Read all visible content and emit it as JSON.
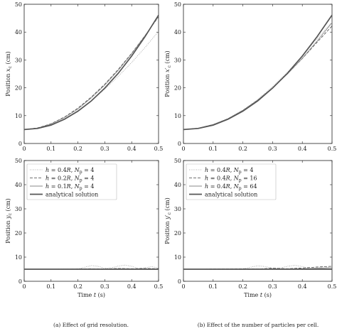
{
  "chart_data": [
    {
      "type": "line",
      "panel": "top-left",
      "ylabel": "Position x_c (cm)",
      "ylabel_main": "Position ",
      "ylabel_sym": "x",
      "ylabel_sub": "c",
      "ylabel_unit": " (cm)",
      "xlabel": "",
      "xlim": [
        0,
        0.5
      ],
      "ylim": [
        0,
        50
      ],
      "xticks": [
        "0",
        "0.1",
        "0.2",
        "0.3",
        "0.4",
        "0.5"
      ],
      "yticks": [
        "0",
        "10",
        "20",
        "30",
        "40",
        "50"
      ],
      "series": [
        {
          "style": "dotted",
          "x": [
            0,
            0.05,
            0.1,
            0.15,
            0.2,
            0.25,
            0.3,
            0.35,
            0.4,
            0.45,
            0.5
          ],
          "y": [
            5,
            5.5,
            6.8,
            8.9,
            11.8,
            15.4,
            19.5,
            24.1,
            29.1,
            34.5,
            40.3
          ]
        },
        {
          "style": "dashed",
          "x": [
            0,
            0.05,
            0.1,
            0.15,
            0.2,
            0.25,
            0.3,
            0.35,
            0.4,
            0.45,
            0.5
          ],
          "y": [
            5,
            5.6,
            7.1,
            9.5,
            12.7,
            16.7,
            21.3,
            26.6,
            32.4,
            38.8,
            45.5
          ]
        },
        {
          "style": "solid-thin",
          "x": [
            0,
            0.05,
            0.1,
            0.15,
            0.2,
            0.25,
            0.3,
            0.35,
            0.4,
            0.45,
            0.5
          ],
          "y": [
            5,
            5.5,
            7.0,
            9.3,
            12.4,
            16.4,
            21.0,
            26.3,
            32.2,
            38.7,
            45.7
          ]
        },
        {
          "style": "solid-thick",
          "x": [
            0,
            0.05,
            0.1,
            0.15,
            0.2,
            0.25,
            0.3,
            0.35,
            0.4,
            0.45,
            0.5
          ],
          "y": [
            5,
            5.4,
            6.6,
            8.7,
            11.6,
            15.3,
            19.9,
            25.2,
            31.4,
            38.4,
            46.1
          ]
        }
      ]
    },
    {
      "type": "line",
      "panel": "top-right",
      "ylabel": "Position x'_c (cm)",
      "ylabel_main": "Position ",
      "ylabel_sym": "x′",
      "ylabel_sub": "c",
      "ylabel_unit": " (cm)",
      "xlabel": "",
      "xlim": [
        0,
        0.5
      ],
      "ylim": [
        0,
        50
      ],
      "xticks": [
        "0",
        "0.1",
        "0.2",
        "0.3",
        "0.4",
        "0.5"
      ],
      "yticks": [
        "0",
        "10",
        "20",
        "30",
        "40",
        "50"
      ],
      "series": [
        {
          "style": "dotted",
          "x": [
            0,
            0.05,
            0.1,
            0.15,
            0.2,
            0.25,
            0.3,
            0.35,
            0.4,
            0.45,
            0.5
          ],
          "y": [
            5,
            5.5,
            6.8,
            9.0,
            12.0,
            15.8,
            20.4,
            25.6,
            31.5,
            37.7,
            43.6
          ]
        },
        {
          "style": "dashed",
          "x": [
            0,
            0.05,
            0.1,
            0.15,
            0.2,
            0.25,
            0.3,
            0.35,
            0.4,
            0.45,
            0.5
          ],
          "y": [
            5,
            5.5,
            6.8,
            8.9,
            11.9,
            15.6,
            20.0,
            25.0,
            30.5,
            36.4,
            42.2
          ]
        },
        {
          "style": "solid-thin",
          "x": [
            0,
            0.05,
            0.1,
            0.15,
            0.2,
            0.25,
            0.3,
            0.35,
            0.4,
            0.45,
            0.5
          ],
          "y": [
            5,
            5.5,
            6.8,
            8.9,
            11.9,
            15.6,
            20.0,
            25.0,
            30.6,
            36.8,
            43.4
          ]
        },
        {
          "style": "solid-thick",
          "x": [
            0,
            0.05,
            0.1,
            0.15,
            0.2,
            0.25,
            0.3,
            0.35,
            0.4,
            0.45,
            0.5
          ],
          "y": [
            5,
            5.4,
            6.6,
            8.7,
            11.6,
            15.3,
            19.9,
            25.2,
            31.4,
            38.4,
            46.1
          ]
        }
      ]
    },
    {
      "type": "line",
      "panel": "bottom-left",
      "ylabel": "Position y_c (cm)",
      "ylabel_main": "Position ",
      "ylabel_sym": "y",
      "ylabel_sub": "c",
      "ylabel_unit": " (cm)",
      "xlabel": "Time t (s)",
      "xlabel_main": "Time ",
      "xlabel_sym": "t",
      "xlabel_unit": " (s)",
      "xlim": [
        0,
        0.5
      ],
      "ylim": [
        0,
        50
      ],
      "xticks": [
        "0",
        "0.1",
        "0.2",
        "0.3",
        "0.4",
        "0.5"
      ],
      "yticks": [
        "0",
        "10",
        "20",
        "30",
        "40",
        "50"
      ],
      "legend": "top-left",
      "legend_entries": [
        {
          "style": "dotted",
          "pre": "h = 0.4R, ",
          "np": "= 4"
        },
        {
          "style": "dashed",
          "pre": "h = 0.2R, ",
          "np": "= 4"
        },
        {
          "style": "solid-thin",
          "pre": "h = 0.1R, ",
          "np": "= 4"
        },
        {
          "style": "solid-thick",
          "pre": "analytical solution",
          "np": ""
        }
      ],
      "series": [
        {
          "style": "dotted",
          "x": [
            0,
            0.05,
            0.1,
            0.15,
            0.2,
            0.225,
            0.25,
            0.275,
            0.3,
            0.325,
            0.35,
            0.375,
            0.4,
            0.425,
            0.45,
            0.475,
            0.5
          ],
          "y": [
            5,
            5,
            5,
            5.1,
            5.1,
            5.8,
            6.5,
            6.2,
            5.4,
            5.6,
            6.3,
            6.7,
            6.2,
            5.3,
            5.6,
            6.1,
            5.4
          ]
        },
        {
          "style": "dashed",
          "x": [
            0,
            0.05,
            0.1,
            0.15,
            0.2,
            0.25,
            0.3,
            0.35,
            0.4,
            0.45,
            0.5
          ],
          "y": [
            5,
            5,
            5,
            5,
            5.1,
            5.2,
            5.1,
            5.3,
            5.2,
            5.3,
            5.2
          ]
        },
        {
          "style": "solid-thin",
          "x": [
            0,
            0.05,
            0.1,
            0.15,
            0.2,
            0.25,
            0.3,
            0.35,
            0.4,
            0.45,
            0.5
          ],
          "y": [
            5,
            5,
            5,
            5,
            5,
            5.1,
            5,
            5.1,
            5.1,
            5,
            5.1
          ]
        },
        {
          "style": "solid-thick",
          "x": [
            0,
            0.5
          ],
          "y": [
            5,
            5
          ]
        }
      ]
    },
    {
      "type": "line",
      "panel": "bottom-right",
      "ylabel": "Position y'_c (cm)",
      "ylabel_main": "Position ",
      "ylabel_sym": "y′",
      "ylabel_sub": "c",
      "ylabel_unit": " (cm)",
      "xlabel": "Time t (s)",
      "xlabel_main": "Time ",
      "xlabel_sym": "t",
      "xlabel_unit": " (s)",
      "xlim": [
        0,
        0.5
      ],
      "ylim": [
        0,
        50
      ],
      "xticks": [
        "0",
        "0.1",
        "0.2",
        "0.3",
        "0.4",
        "0.5"
      ],
      "yticks": [
        "0",
        "10",
        "20",
        "30",
        "40",
        "50"
      ],
      "legend": "top-left",
      "legend_entries": [
        {
          "style": "dotted",
          "pre": "h = 0.4R, ",
          "np": "= 4"
        },
        {
          "style": "dashed",
          "pre": "h = 0.4R, ",
          "np": "= 16"
        },
        {
          "style": "solid-thin",
          "pre": "h = 0.4R, ",
          "np": "= 64"
        },
        {
          "style": "solid-thick",
          "pre": "analytical solution",
          "np": ""
        }
      ],
      "series": [
        {
          "style": "dotted",
          "x": [
            0,
            0.05,
            0.1,
            0.15,
            0.2,
            0.225,
            0.25,
            0.275,
            0.3,
            0.325,
            0.35,
            0.375,
            0.4,
            0.425,
            0.45,
            0.475,
            0.5
          ],
          "y": [
            5,
            5,
            5,
            5.1,
            5.1,
            5.8,
            6.4,
            6.1,
            5.4,
            5.5,
            6.2,
            6.6,
            6.1,
            5.3,
            5.5,
            6.0,
            5.4
          ]
        },
        {
          "style": "dashed",
          "x": [
            0,
            0.05,
            0.1,
            0.15,
            0.2,
            0.25,
            0.3,
            0.35,
            0.4,
            0.45,
            0.5
          ],
          "y": [
            5,
            5,
            5.1,
            5.1,
            5.2,
            5.1,
            5.4,
            5.2,
            5.5,
            5.9,
            6.2
          ]
        },
        {
          "style": "solid-thin",
          "x": [
            0,
            0.05,
            0.1,
            0.15,
            0.2,
            0.25,
            0.3,
            0.35,
            0.4,
            0.45,
            0.5
          ],
          "y": [
            5,
            5,
            5,
            5,
            5,
            5.1,
            5,
            5.1,
            5.2,
            5.4,
            5.6
          ]
        },
        {
          "style": "solid-thick",
          "x": [
            0,
            0.5
          ],
          "y": [
            5,
            5
          ]
        }
      ]
    }
  ],
  "captions": {
    "left": "(a) Effect of grid resolution.",
    "right": "(b) Effect of the number of particles per cell."
  }
}
